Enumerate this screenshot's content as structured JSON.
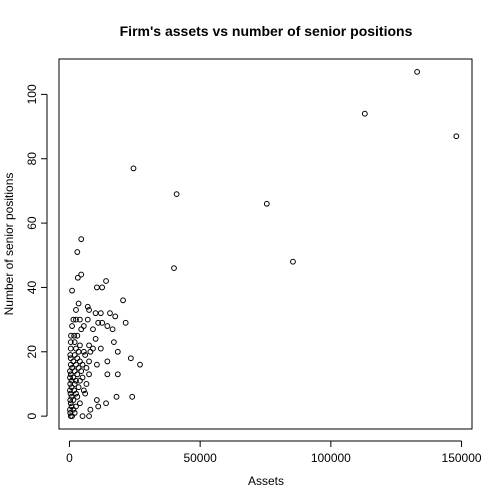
{
  "chart_data": {
    "type": "scatter",
    "title": "Firm's assets vs number of senior positions",
    "xlabel": "Assets",
    "ylabel": "Number of senior positions",
    "xlim": [
      -4000,
      154000
    ],
    "ylim": [
      -4,
      111
    ],
    "xticks": [
      0,
      50000,
      100000,
      150000
    ],
    "xtick_labels": [
      "0",
      "50000",
      "100000",
      "150000"
    ],
    "yticks": [
      0,
      20,
      40,
      60,
      80,
      100
    ],
    "ytick_labels": [
      "0",
      "20",
      "40",
      "60",
      "80",
      "100"
    ],
    "grid": false,
    "legend": "none",
    "marker": "open-circle",
    "color": "#000000",
    "points": [
      [
        133000,
        107
      ],
      [
        113000,
        94
      ],
      [
        148000,
        87
      ],
      [
        24500,
        77
      ],
      [
        41000,
        69
      ],
      [
        75500,
        66
      ],
      [
        85500,
        48
      ],
      [
        40000,
        46
      ],
      [
        4500,
        55
      ],
      [
        3000,
        51
      ],
      [
        4500,
        44
      ],
      [
        3200,
        43
      ],
      [
        14000,
        42
      ],
      [
        10500,
        40
      ],
      [
        12500,
        40
      ],
      [
        1000,
        39
      ],
      [
        20500,
        36
      ],
      [
        3500,
        35
      ],
      [
        7000,
        34
      ],
      [
        7500,
        33
      ],
      [
        2500,
        33
      ],
      [
        10000,
        32
      ],
      [
        12000,
        32
      ],
      [
        15500,
        32
      ],
      [
        17500,
        31
      ],
      [
        1500,
        30
      ],
      [
        2500,
        30
      ],
      [
        4000,
        30
      ],
      [
        7000,
        30
      ],
      [
        11000,
        29
      ],
      [
        12500,
        29
      ],
      [
        21500,
        29
      ],
      [
        1000,
        28
      ],
      [
        5500,
        28
      ],
      [
        14500,
        28
      ],
      [
        4500,
        27
      ],
      [
        9000,
        27
      ],
      [
        16500,
        27
      ],
      [
        600,
        25
      ],
      [
        1800,
        25
      ],
      [
        3000,
        25
      ],
      [
        10000,
        24
      ],
      [
        500,
        23
      ],
      [
        2000,
        23
      ],
      [
        17000,
        23
      ],
      [
        4000,
        22
      ],
      [
        7500,
        22
      ],
      [
        500,
        21
      ],
      [
        2500,
        21
      ],
      [
        9000,
        21
      ],
      [
        12000,
        21
      ],
      [
        3500,
        20
      ],
      [
        5500,
        20
      ],
      [
        8000,
        20
      ],
      [
        18500,
        20
      ],
      [
        300,
        19
      ],
      [
        2000,
        19
      ],
      [
        6000,
        19
      ],
      [
        500,
        18
      ],
      [
        3000,
        18
      ],
      [
        23500,
        18
      ],
      [
        1500,
        17
      ],
      [
        4000,
        17
      ],
      [
        7500,
        17
      ],
      [
        14500,
        17
      ],
      [
        500,
        16
      ],
      [
        2500,
        16
      ],
      [
        5000,
        16
      ],
      [
        10500,
        16
      ],
      [
        27000,
        16
      ],
      [
        1000,
        15
      ],
      [
        3500,
        15
      ],
      [
        6500,
        15
      ],
      [
        200,
        14
      ],
      [
        2000,
        14
      ],
      [
        4500,
        14
      ],
      [
        500,
        13
      ],
      [
        3000,
        13
      ],
      [
        7500,
        13
      ],
      [
        14500,
        13
      ],
      [
        18500,
        13
      ],
      [
        200,
        12
      ],
      [
        1500,
        12
      ],
      [
        5000,
        12
      ],
      [
        800,
        11
      ],
      [
        2500,
        11
      ],
      [
        4000,
        11
      ],
      [
        300,
        10
      ],
      [
        2000,
        10
      ],
      [
        6500,
        10
      ],
      [
        800,
        9
      ],
      [
        3500,
        9
      ],
      [
        200,
        8
      ],
      [
        1800,
        8
      ],
      [
        5500,
        8
      ],
      [
        400,
        7
      ],
      [
        2500,
        7
      ],
      [
        6000,
        7
      ],
      [
        800,
        6
      ],
      [
        3000,
        6
      ],
      [
        18000,
        6
      ],
      [
        24000,
        6
      ],
      [
        300,
        5
      ],
      [
        1500,
        5
      ],
      [
        10500,
        5
      ],
      [
        500,
        4
      ],
      [
        4000,
        4
      ],
      [
        14000,
        4
      ],
      [
        800,
        3
      ],
      [
        2500,
        3
      ],
      [
        11000,
        3
      ],
      [
        200,
        2
      ],
      [
        1500,
        2
      ],
      [
        8000,
        2
      ],
      [
        300,
        1
      ],
      [
        2000,
        1
      ],
      [
        500,
        0
      ],
      [
        1000,
        0
      ],
      [
        5000,
        0
      ],
      [
        7500,
        0
      ]
    ]
  }
}
